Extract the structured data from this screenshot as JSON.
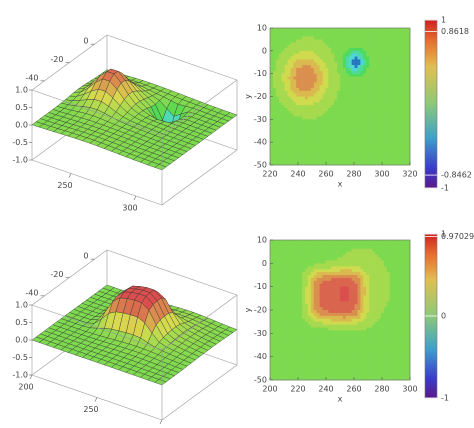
{
  "chart_data": [
    {
      "type": "surface3d",
      "xlim": [
        220,
        320
      ],
      "ylim": [
        -50,
        10
      ],
      "zlim": [
        -1,
        1
      ],
      "xticks": [
        250,
        300
      ],
      "yticks": [
        0,
        -20,
        -40
      ],
      "zticks": [
        {
          "value": 1,
          "label": "1.0"
        },
        0.5,
        {
          "value": 0,
          "label": "0.0"
        },
        -0.5,
        {
          "value": -1,
          "label": "-1.0"
        }
      ]
    },
    {
      "type": "contour",
      "xlabel": "x",
      "ylabel": "y",
      "xlim": [
        220,
        320
      ],
      "ylim": [
        -50,
        10
      ],
      "xticks": [
        220,
        240,
        260,
        280,
        300,
        320
      ],
      "yticks": [
        10,
        0,
        -10,
        -20,
        -30,
        -40,
        -50
      ],
      "colorbar": {
        "lim": [
          -1,
          1
        ],
        "ticks": [
          1,
          0.8618,
          -0.8462,
          -1
        ]
      }
    },
    {
      "type": "surface3d",
      "xlim": [
        200,
        300
      ],
      "ylim": [
        -50,
        10
      ],
      "zlim": [
        -1,
        1
      ],
      "xticks": [
        200,
        250,
        300
      ],
      "yticks": [
        0,
        -20,
        -40
      ],
      "zticks": [
        {
          "value": 1,
          "label": "1.0"
        },
        0.5,
        {
          "value": 0,
          "label": "0.0"
        },
        -0.5,
        {
          "value": -1,
          "label": "-1.0"
        }
      ]
    },
    {
      "type": "contour",
      "xlabel": "x",
      "ylabel": "y",
      "xlim": [
        200,
        300
      ],
      "ylim": [
        -50,
        10
      ],
      "xticks": [
        200,
        220,
        240,
        260,
        280,
        300
      ],
      "yticks": [
        10,
        0,
        -10,
        -20,
        -30,
        -40,
        -50
      ],
      "colorbar": {
        "lim": [
          -1,
          1
        ],
        "ticks": [
          1,
          0.97029,
          0,
          -1
        ]
      }
    }
  ]
}
